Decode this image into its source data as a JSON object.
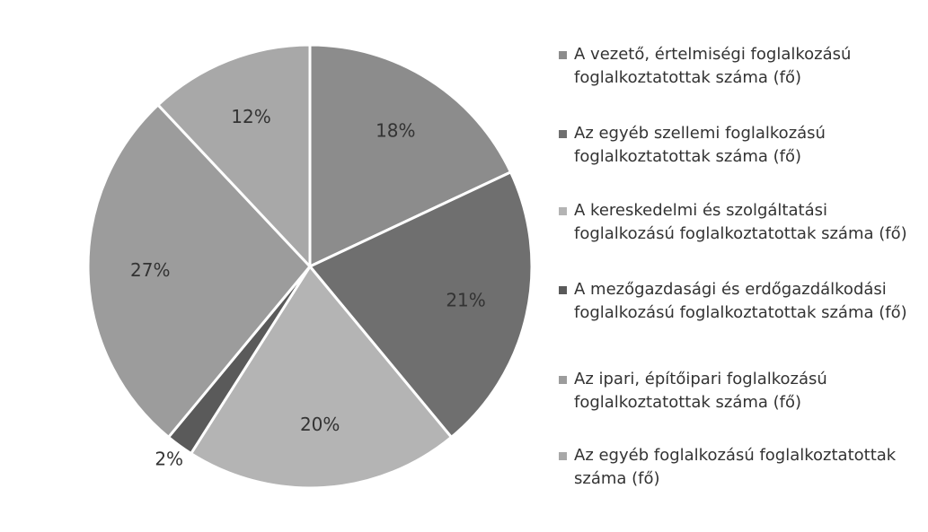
{
  "chart_data": {
    "type": "pie",
    "categories": [
      "A vezető, értelmiségi foglalkozású foglalkoztatottak száma (fő)",
      "Az egyéb szellemi foglalkozású foglalkoztatottak száma (fő)",
      "A kereskedelmi és szolgáltatási foglalkozású foglalkoztatottak száma (fő)",
      "A mezőgazdasági és erdőgazdálkodási foglalkozású foglalkoztatottak száma (fő)",
      "Az ipari, építőipari foglalkozású foglalkoztatottak száma (fő)",
      "Az egyéb foglalkozású foglalkoztatottak száma (fő)"
    ],
    "values": [
      18,
      21,
      20,
      2,
      27,
      12
    ],
    "value_labels": [
      "18%",
      "21%",
      "20%",
      "2%",
      "27%",
      "12%"
    ],
    "colors": [
      "#8c8c8c",
      "#6f6f6f",
      "#b4b4b4",
      "#5a5a5a",
      "#9c9c9c",
      "#a8a8a8"
    ],
    "legend": "right"
  }
}
